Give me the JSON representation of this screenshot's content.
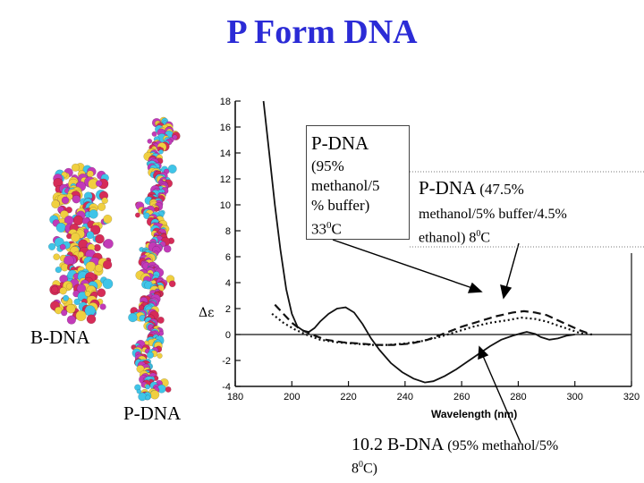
{
  "title": "P Form DNA",
  "labels": {
    "b_dna": "B-DNA",
    "p_dna_model": "P-DNA"
  },
  "annotations": {
    "box_head": "P-DNA",
    "box_line1": "(95%",
    "box_line2": "methanol/5",
    "box_line3": "% buffer)",
    "box_line4_pre": "33",
    "box_line4_sup": "0",
    "box_line4_post": "C",
    "right_head": "P-DNA",
    "right_head_suffix": "(47.5%",
    "right_line2": "methanol/5% buffer/4.5%",
    "right_line3_pre": "ethanol) 8",
    "right_line3_sup": "0",
    "right_line3_post": "C",
    "bottom_line1_pre": "10.2 B-DNA",
    "bottom_line1_post": "(95% methanol/5%",
    "bottom_line2_pre": "8",
    "bottom_line2_sup": "0",
    "bottom_line2_post": "C)"
  },
  "chart_data": {
    "type": "line",
    "xlabel": "Wavelength (nm)",
    "ylabel": "Δε",
    "xlim": [
      180,
      320
    ],
    "ylim": [
      -4,
      18
    ],
    "xticks": [
      180,
      200,
      220,
      240,
      260,
      280,
      300,
      320
    ],
    "yticks": [
      -4,
      -2,
      0,
      2,
      4,
      6,
      8,
      10,
      12,
      14,
      16,
      18
    ],
    "series": [
      {
        "style": "solid",
        "points": [
          [
            190,
            18
          ],
          [
            192,
            14
          ],
          [
            194,
            10
          ],
          [
            196,
            6.5
          ],
          [
            198,
            3.5
          ],
          [
            200,
            1.6
          ],
          [
            202,
            0.6
          ],
          [
            204,
            0.3
          ],
          [
            206,
            0.2
          ],
          [
            208,
            0.5
          ],
          [
            210,
            1.0
          ],
          [
            213,
            1.6
          ],
          [
            216,
            2.0
          ],
          [
            219,
            2.1
          ],
          [
            222,
            1.7
          ],
          [
            225,
            0.8
          ],
          [
            228,
            -0.3
          ],
          [
            231,
            -1.2
          ],
          [
            235,
            -2.2
          ],
          [
            239,
            -2.9
          ],
          [
            243,
            -3.4
          ],
          [
            247,
            -3.7
          ],
          [
            250,
            -3.6
          ],
          [
            254,
            -3.2
          ],
          [
            258,
            -2.7
          ],
          [
            262,
            -2.1
          ],
          [
            266,
            -1.5
          ],
          [
            270,
            -0.9
          ],
          [
            274,
            -0.4
          ],
          [
            278,
            -0.1
          ],
          [
            281,
            0.1
          ],
          [
            283,
            0.2
          ],
          [
            286,
            0.05
          ],
          [
            288,
            -0.2
          ],
          [
            291,
            -0.4
          ],
          [
            294,
            -0.3
          ],
          [
            297,
            -0.1
          ],
          [
            300,
            0
          ]
        ]
      },
      {
        "style": "dashed",
        "points": [
          [
            194,
            2.3
          ],
          [
            197,
            1.6
          ],
          [
            200,
            0.9
          ],
          [
            203,
            0.4
          ],
          [
            207,
            0
          ],
          [
            212,
            -0.4
          ],
          [
            218,
            -0.6
          ],
          [
            224,
            -0.7
          ],
          [
            230,
            -0.8
          ],
          [
            236,
            -0.8
          ],
          [
            242,
            -0.7
          ],
          [
            248,
            -0.4
          ],
          [
            254,
            0.1
          ],
          [
            260,
            0.6
          ],
          [
            266,
            1.0
          ],
          [
            272,
            1.4
          ],
          [
            278,
            1.7
          ],
          [
            282,
            1.8
          ],
          [
            286,
            1.7
          ],
          [
            290,
            1.5
          ],
          [
            294,
            1.1
          ],
          [
            298,
            0.7
          ],
          [
            302,
            0.3
          ],
          [
            306,
            0
          ]
        ]
      },
      {
        "style": "dotted",
        "points": [
          [
            193,
            1.6
          ],
          [
            197,
            0.9
          ],
          [
            201,
            0.4
          ],
          [
            205,
            0
          ],
          [
            210,
            -0.4
          ],
          [
            216,
            -0.6
          ],
          [
            222,
            -0.7
          ],
          [
            228,
            -0.8
          ],
          [
            234,
            -0.8
          ],
          [
            240,
            -0.7
          ],
          [
            246,
            -0.5
          ],
          [
            252,
            -0.2
          ],
          [
            258,
            0.2
          ],
          [
            264,
            0.6
          ],
          [
            270,
            0.9
          ],
          [
            276,
            1.1
          ],
          [
            281,
            1.3
          ],
          [
            286,
            1.2
          ],
          [
            290,
            1.0
          ],
          [
            294,
            0.7
          ],
          [
            298,
            0.4
          ],
          [
            302,
            0.1
          ],
          [
            306,
            0
          ]
        ]
      }
    ],
    "grid": false,
    "legend": "none"
  },
  "colors": {
    "title": "#2b2bd6",
    "magenta": "#c23ab8",
    "cyan": "#3fc4e8",
    "yellow": "#f0cf40",
    "red": "#d62c58",
    "axis": "#111111"
  }
}
